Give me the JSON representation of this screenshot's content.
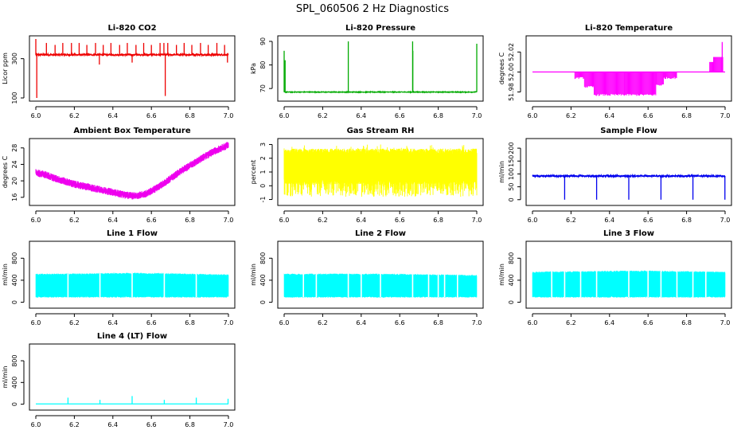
{
  "figure_title": "SPL_060506  2 Hz Diagnostics",
  "chart_data": [
    {
      "type": "line",
      "title": "Li-820 CO2",
      "ylabel": "Licor ppm",
      "xlim": [
        6.0,
        7.0
      ],
      "ylim": [
        100,
        400
      ],
      "xticks": [
        6.0,
        6.2,
        6.4,
        6.6,
        6.8,
        7.0
      ],
      "xtick_labels": [
        "6.0",
        "6.2",
        "6.4",
        "6.6",
        "6.8",
        "7.0"
      ],
      "yticks": [
        100,
        300
      ],
      "ytick_labels": [
        "100",
        "300"
      ],
      "color": "#ee0000",
      "series": [
        {
          "name": "CO2",
          "baseline": 320,
          "noise": 8,
          "spikes": [
            [
              6.0,
              400
            ],
            [
              6.005,
              100
            ],
            [
              6.055,
              380
            ],
            [
              6.1,
              370
            ],
            [
              6.14,
              380
            ],
            [
              6.185,
              380
            ],
            [
              6.225,
              380
            ],
            [
              6.265,
              370
            ],
            [
              6.31,
              380
            ],
            [
              6.33,
              270
            ],
            [
              6.35,
              370
            ],
            [
              6.39,
              380
            ],
            [
              6.435,
              370
            ],
            [
              6.475,
              380
            ],
            [
              6.5,
              280
            ],
            [
              6.52,
              370
            ],
            [
              6.56,
              380
            ],
            [
              6.6,
              370
            ],
            [
              6.645,
              380
            ],
            [
              6.665,
              380
            ],
            [
              6.672,
              110
            ],
            [
              6.685,
              380
            ],
            [
              6.73,
              370
            ],
            [
              6.77,
              380
            ],
            [
              6.81,
              370
            ],
            [
              6.855,
              380
            ],
            [
              6.895,
              370
            ],
            [
              6.94,
              380
            ],
            [
              6.98,
              370
            ],
            [
              6.995,
              280
            ]
          ]
        }
      ]
    },
    {
      "type": "line",
      "title": "Li-820 Pressure",
      "ylabel": "kPa",
      "xlim": [
        6.0,
        7.0
      ],
      "ylim": [
        66,
        91
      ],
      "xticks": [
        6.0,
        6.2,
        6.4,
        6.6,
        6.8,
        7.0
      ],
      "xtick_labels": [
        "6.0",
        "6.2",
        "6.4",
        "6.6",
        "6.8",
        "7.0"
      ],
      "yticks": [
        70,
        80,
        90
      ],
      "ytick_labels": [
        "70",
        "80",
        "90"
      ],
      "color": "#00aa00",
      "series": [
        {
          "name": "Pressure",
          "baseline": 68.5,
          "noise": 0.3,
          "spikes": [
            [
              6.0,
              86
            ],
            [
              6.005,
              82
            ],
            [
              6.333,
              90
            ],
            [
              6.667,
              90
            ],
            [
              6.668,
              86
            ],
            [
              7.0,
              89
            ]
          ]
        }
      ]
    },
    {
      "type": "line",
      "title": "Li-820 Temperature",
      "ylabel": "degrees C",
      "xlim": [
        6.0,
        7.0
      ],
      "ylim": [
        51.974,
        52.033
      ],
      "xticks": [
        6.0,
        6.2,
        6.4,
        6.6,
        6.8,
        7.0
      ],
      "xtick_labels": [
        "6.0",
        "6.2",
        "6.4",
        "6.6",
        "6.8",
        "7.0"
      ],
      "yticks": [
        51.98,
        52.0,
        52.02
      ],
      "ytick_labels": [
        "51.98",
        "52.00",
        "52.02"
      ],
      "color": "#ff00ff",
      "series": [
        {
          "name": "Temperature",
          "baseline": 52.0,
          "low_blocks": [
            [
              6.22,
              6.27,
              51.993
            ],
            [
              6.27,
              6.32,
              51.984
            ],
            [
              6.32,
              6.48,
              51.976
            ],
            [
              6.48,
              6.64,
              51.976
            ],
            [
              6.64,
              6.68,
              51.986
            ],
            [
              6.68,
              6.75,
              51.993
            ]
          ],
          "high_blocks": [
            [
              6.92,
              6.94,
              52.01
            ],
            [
              6.94,
              6.99,
              52.015
            ]
          ],
          "spikes": [
            [
              6.985,
              52.03
            ]
          ]
        }
      ]
    },
    {
      "type": "line",
      "title": "Ambient Box Temperature",
      "ylabel": "degrees C",
      "xlim": [
        6.0,
        7.0
      ],
      "ylim": [
        14.8,
        29.5
      ],
      "xticks": [
        6.0,
        6.2,
        6.4,
        6.6,
        6.8,
        7.0
      ],
      "xtick_labels": [
        "6.0",
        "6.2",
        "6.4",
        "6.6",
        "6.8",
        "7.0"
      ],
      "yticks": [
        16,
        20,
        24,
        28
      ],
      "ytick_labels": [
        "16",
        "20",
        "24",
        "28"
      ],
      "color": "#ee00ee",
      "series": [
        {
          "name": "Box Temp",
          "noise": 0.9,
          "curve": [
            [
              6.0,
              22.0
            ],
            [
              6.05,
              21.5
            ],
            [
              6.1,
              20.6
            ],
            [
              6.2,
              19.2
            ],
            [
              6.3,
              18.2
            ],
            [
              6.4,
              17.2
            ],
            [
              6.47,
              16.5
            ],
            [
              6.52,
              16.3
            ],
            [
              6.58,
              17.0
            ],
            [
              6.64,
              18.6
            ],
            [
              6.7,
              20.6
            ],
            [
              6.76,
              22.6
            ],
            [
              6.82,
              24.3
            ],
            [
              6.88,
              26.0
            ],
            [
              6.94,
              27.5
            ],
            [
              7.0,
              28.7
            ]
          ]
        }
      ]
    },
    {
      "type": "line",
      "title": "Gas Stream RH",
      "ylabel": "percent",
      "xlim": [
        6.0,
        7.0
      ],
      "ylim": [
        -1.2,
        3.2
      ],
      "xticks": [
        6.0,
        6.2,
        6.4,
        6.6,
        6.8,
        7.0
      ],
      "xtick_labels": [
        "6.0",
        "6.2",
        "6.4",
        "6.6",
        "6.8",
        "7.0"
      ],
      "yticks": [
        -1,
        0,
        1,
        2,
        3
      ],
      "ytick_labels": [
        "-1",
        "0",
        "1",
        "2",
        "3"
      ],
      "color": "#ffff00",
      "series": [
        {
          "name": "RH",
          "band_top": 2.7,
          "band_bottom": -0.8,
          "dense_low": 0.5
        }
      ]
    },
    {
      "type": "line",
      "title": "Sample Flow",
      "ylabel": "ml/min",
      "xlim": [
        6.0,
        7.0
      ],
      "ylim": [
        -10,
        225
      ],
      "xticks": [
        6.0,
        6.2,
        6.4,
        6.6,
        6.8,
        7.0
      ],
      "xtick_labels": [
        "6.0",
        "6.2",
        "6.4",
        "6.6",
        "6.8",
        "7.0"
      ],
      "yticks": [
        0,
        50,
        100,
        150,
        200
      ],
      "ytick_labels": [
        "0",
        "50",
        "100",
        "150",
        "200"
      ],
      "color": "#0000ee",
      "series": [
        {
          "name": "Sample Flow",
          "baseline": 92,
          "noise": 6,
          "spikes": [
            [
              6.167,
              0
            ],
            [
              6.333,
              0
            ],
            [
              6.5,
              0
            ],
            [
              6.667,
              0
            ],
            [
              6.833,
              0
            ],
            [
              6.999,
              0
            ]
          ]
        }
      ]
    },
    {
      "type": "area",
      "title": "Line 1 Flow",
      "ylabel": "ml/min",
      "xlim": [
        6.0,
        7.0
      ],
      "ylim": [
        -50,
        1050
      ],
      "xticks": [
        6.0,
        6.2,
        6.4,
        6.6,
        6.8,
        7.0
      ],
      "xtick_labels": [
        "6.0",
        "6.2",
        "6.4",
        "6.6",
        "6.8",
        "7.0"
      ],
      "yticks": [
        0,
        400,
        800
      ],
      "ytick_labels": [
        "0",
        "400",
        "800"
      ],
      "color": "#00ffff",
      "series": [
        {
          "name": "Line 1",
          "upper": [
            [
              6.0,
              500
            ],
            [
              6.3,
              510
            ],
            [
              6.5,
              520
            ],
            [
              6.7,
              510
            ],
            [
              6.99,
              490
            ]
          ],
          "lower": 90,
          "gaps": [
            6.167,
            6.333,
            6.5,
            6.667,
            6.833
          ]
        }
      ]
    },
    {
      "type": "area",
      "title": "Line 2 Flow",
      "ylabel": "ml/min",
      "xlim": [
        6.0,
        7.0
      ],
      "ylim": [
        -50,
        1050
      ],
      "xticks": [
        6.0,
        6.2,
        6.4,
        6.6,
        6.8,
        7.0
      ],
      "xtick_labels": [
        "6.0",
        "6.2",
        "6.4",
        "6.6",
        "6.8",
        "7.0"
      ],
      "yticks": [
        0,
        400,
        800
      ],
      "ytick_labels": [
        "0",
        "400",
        "800"
      ],
      "color": "#00ffff",
      "series": [
        {
          "name": "Line 2",
          "upper": [
            [
              6.0,
              500
            ],
            [
              6.3,
              505
            ],
            [
              6.6,
              500
            ],
            [
              6.99,
              480
            ]
          ],
          "lower": 90,
          "gaps": [
            6.1,
            6.167,
            6.333,
            6.4,
            6.5,
            6.667,
            6.75,
            6.8,
            6.833,
            6.9
          ]
        }
      ]
    },
    {
      "type": "area",
      "title": "Line 3 Flow",
      "ylabel": "ml/min",
      "xlim": [
        6.0,
        7.0
      ],
      "ylim": [
        -50,
        1050
      ],
      "xticks": [
        6.0,
        6.2,
        6.4,
        6.6,
        6.8,
        7.0
      ],
      "xtick_labels": [
        "6.0",
        "6.2",
        "6.4",
        "6.6",
        "6.8",
        "7.0"
      ],
      "yticks": [
        0,
        400,
        800
      ],
      "ytick_labels": [
        "0",
        "400",
        "800"
      ],
      "color": "#00ffff",
      "series": [
        {
          "name": "Line 3",
          "upper": [
            [
              6.0,
              540
            ],
            [
              6.3,
              550
            ],
            [
              6.6,
              560
            ],
            [
              6.99,
              540
            ]
          ],
          "lower": 90,
          "gaps": [
            6.1,
            6.167,
            6.25,
            6.333,
            6.5,
            6.6,
            6.667,
            6.75,
            6.833,
            6.9
          ]
        }
      ]
    },
    {
      "type": "line",
      "title": "Line 4 (LT) Flow",
      "ylabel": "ml/min",
      "xlim": [
        6.0,
        7.0
      ],
      "ylim": [
        -50,
        1050
      ],
      "xticks": [
        6.0,
        6.2,
        6.4,
        6.6,
        6.8,
        7.0
      ],
      "xtick_labels": [
        "6.0",
        "6.2",
        "6.4",
        "6.6",
        "6.8",
        "7.0"
      ],
      "yticks": [
        0,
        400,
        800
      ],
      "ytick_labels": [
        "0",
        "400",
        "800"
      ],
      "color": "#00ffff",
      "series": [
        {
          "name": "Line 4",
          "baseline": 5,
          "noise": 0,
          "spikes": [
            [
              6.167,
              120
            ],
            [
              6.333,
              80
            ],
            [
              6.5,
              150
            ],
            [
              6.667,
              80
            ],
            [
              6.833,
              120
            ],
            [
              6.998,
              100
            ]
          ]
        }
      ]
    }
  ]
}
